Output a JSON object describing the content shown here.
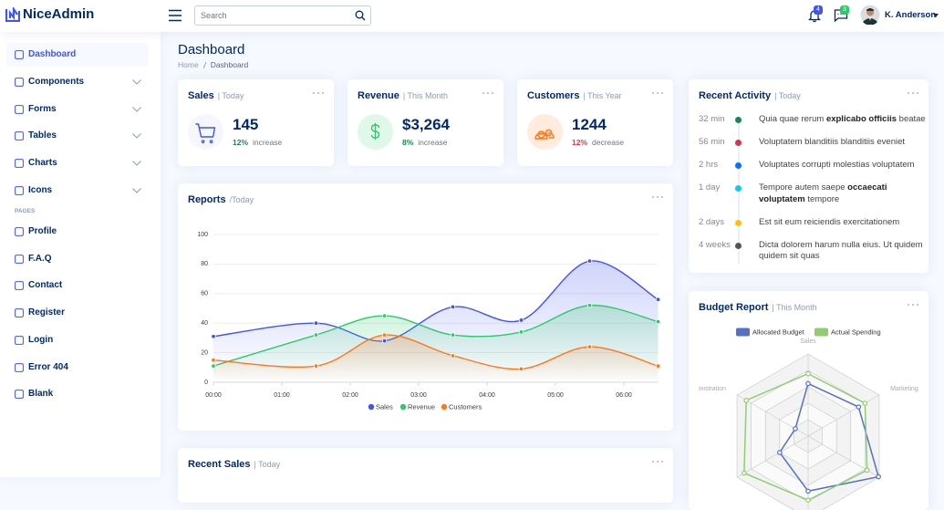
{
  "header": {
    "brand": "NiceAdmin",
    "search_placeholder": "Search",
    "notifications": "4",
    "messages": "3",
    "user": "K. Anderson"
  },
  "sidebar": {
    "menu": [
      {
        "label": "Dashboard",
        "active": true
      },
      {
        "label": "Components",
        "expandable": true
      },
      {
        "label": "Forms",
        "expandable": true
      },
      {
        "label": "Tables",
        "expandable": true
      },
      {
        "label": "Charts",
        "expandable": true
      },
      {
        "label": "Icons",
        "expandable": true
      }
    ],
    "section": "PAGES",
    "pages": [
      "Profile",
      "F.A.Q",
      "Contact",
      "Register",
      "Login",
      "Error 404",
      "Blank"
    ]
  },
  "page": {
    "title": "Dashboard",
    "breadcrumb": [
      "Home",
      "Dashboard"
    ]
  },
  "cards": [
    {
      "title": "Sales",
      "filter": "| Today",
      "value": "145",
      "change": "12%",
      "change_text": "increase",
      "trend": "up",
      "color": "#4154f1",
      "bg": "#f6f6fe",
      "icon": "cart"
    },
    {
      "title": "Revenue",
      "filter": "| This Month",
      "value": "$3,264",
      "change": "8%",
      "change_text": "increase",
      "trend": "up",
      "color": "#2eca6a",
      "bg": "#e0f8e9",
      "icon": "dollar"
    },
    {
      "title": "Customers",
      "filter": "| This Year",
      "value": "1244",
      "change": "12%",
      "change_text": "decrease",
      "trend": "down",
      "color": "#ff771d",
      "bg": "#ffecdf",
      "icon": "people"
    }
  ],
  "activity": {
    "title": "Recent Activity",
    "filter": "| Today",
    "items": [
      {
        "time": "32 min",
        "text": "Quia quae rerum ",
        "bold": "explicabo officiis",
        "tail": " beatae",
        "color": "#198754"
      },
      {
        "time": "56 min",
        "text": "Voluptatem blanditiis blanditiis eveniet",
        "color": "#dc3545"
      },
      {
        "time": "2 hrs",
        "text": "Voluptates corrupti molestias voluptatem",
        "color": "#0d6efd"
      },
      {
        "time": "1 day",
        "text": "Tempore autem saepe ",
        "bold": "occaecati voluptatem",
        "tail": " tempore",
        "color": "#0dcaf0"
      },
      {
        "time": "2 days",
        "text": "Est sit eum reiciendis exercitationem",
        "color": "#ffc107"
      },
      {
        "time": "4 weeks",
        "text": "Dicta dolorem harum nulla eius. Ut quidem quidem sit quas",
        "color": "#555555"
      }
    ]
  },
  "reports": {
    "title": "Reports",
    "filter": "/Today",
    "chart": {
      "type": "line",
      "x": [
        0,
        1.5,
        2.5,
        3.5,
        4.5,
        5.5,
        6.5
      ],
      "xlim": [
        0,
        6.5
      ],
      "xticks": [
        {
          "value": 0,
          "label": "00:00"
        },
        {
          "value": 1,
          "label": "01:00"
        },
        {
          "value": 2,
          "label": "02:00"
        },
        {
          "value": 3,
          "label": "03:00"
        },
        {
          "value": 4,
          "label": "04:00"
        },
        {
          "value": 5,
          "label": "05:00"
        },
        {
          "value": 6,
          "label": "06:00"
        }
      ],
      "ylim": [
        0,
        100
      ],
      "yticks": [
        0,
        20,
        40,
        60,
        80,
        100
      ],
      "grid": true,
      "area": true,
      "series": [
        {
          "name": "Sales",
          "color": "#4154f1",
          "values": [
            31,
            40,
            28,
            51,
            42,
            82,
            56
          ]
        },
        {
          "name": "Revenue",
          "color": "#2eca6a",
          "values": [
            11,
            32,
            45,
            32,
            34,
            52,
            41
          ]
        },
        {
          "name": "Customers",
          "color": "#ff771d",
          "values": [
            15,
            11,
            32,
            18,
            9,
            24,
            11
          ]
        }
      ]
    }
  },
  "budget": {
    "title": "Budget Report",
    "filter": "| This Month",
    "chart": {
      "type": "radar",
      "categories": [
        "Sales",
        "Marketing",
        null,
        null,
        null,
        "inistration"
      ],
      "rlim": [
        0,
        100
      ],
      "series": [
        {
          "name": "Allocated Budget",
          "color": "#5470c6",
          "values": [
            64,
            71,
            99,
            67,
            40,
            18
          ]
        },
        {
          "name": "Actual Spending",
          "color": "#91cc75",
          "values": [
            76,
            80,
            83,
            78,
            90,
            87
          ]
        }
      ]
    }
  },
  "recent_sales": {
    "title": "Recent Sales",
    "filter": "| Today"
  }
}
